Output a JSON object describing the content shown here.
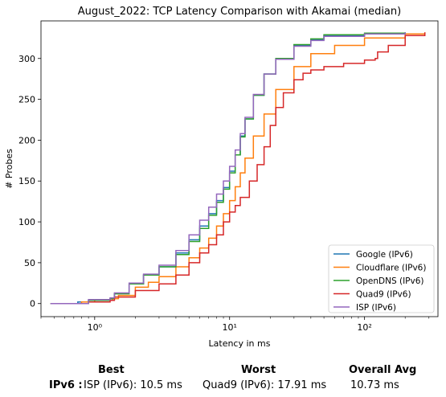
{
  "chart_data": {
    "type": "line",
    "title": "August_2022: TCP Latency Comparison with Akamai (median)",
    "xlabel": "Latency in ms",
    "ylabel": "# Probes",
    "xscale": "log",
    "xlim": [
      0.4,
      350
    ],
    "ylim": [
      -16,
      346
    ],
    "xticks": [
      1,
      10,
      100
    ],
    "xtick_labels": [
      "10⁰",
      "10¹",
      "10²"
    ],
    "yticks": [
      0,
      50,
      100,
      150,
      200,
      250,
      300
    ],
    "grid": false,
    "legend_position": "lower right",
    "series": [
      {
        "name": "Google (IPv6)",
        "color": "#1f77b4",
        "x": [
          0.47,
          0.75,
          0.9,
          1.3,
          1.4,
          1.8,
          2.3,
          3.0,
          4.0,
          5.0,
          6.0,
          7.0,
          8.0,
          9.0,
          10.0,
          11.0,
          12.0,
          13.0,
          15.0,
          18.0,
          22.0,
          30.0,
          40.0,
          50.0,
          100.0,
          200.0
        ],
        "y": [
          0,
          2,
          4,
          6,
          12,
          24,
          35,
          45,
          62,
          78,
          95,
          110,
          126,
          142,
          162,
          182,
          205,
          226,
          255,
          281,
          299,
          316,
          323,
          328,
          330,
          332
        ]
      },
      {
        "name": "Cloudflare (IPv6)",
        "color": "#ff7f0e",
        "x": [
          0.47,
          0.8,
          1.0,
          1.35,
          1.5,
          2.0,
          2.5,
          3.0,
          4.0,
          5.0,
          6.0,
          7.0,
          8.0,
          9.0,
          10.0,
          11.0,
          12.0,
          13.0,
          15.0,
          18.0,
          22.0,
          30.0,
          40.0,
          60.0,
          100.0,
          200.0,
          280.0
        ],
        "y": [
          0,
          2,
          4,
          6,
          10,
          20,
          26,
          33,
          45,
          56,
          68,
          80,
          95,
          110,
          126,
          143,
          160,
          178,
          205,
          232,
          262,
          290,
          306,
          316,
          325,
          330,
          332
        ]
      },
      {
        "name": "OpenDNS (IPv6)",
        "color": "#2ca02c",
        "x": [
          0.47,
          0.9,
          1.3,
          1.4,
          1.8,
          2.3,
          3.0,
          4.0,
          5.0,
          6.0,
          7.0,
          8.0,
          9.0,
          10.0,
          11.0,
          12.0,
          13.0,
          15.0,
          18.0,
          22.0,
          30.0,
          40.0,
          50.0,
          100.0,
          200.0
        ],
        "y": [
          0,
          4,
          6,
          12,
          24,
          35,
          45,
          60,
          76,
          92,
          108,
          124,
          140,
          160,
          182,
          204,
          226,
          255,
          281,
          300,
          317,
          324,
          329,
          331,
          332
        ]
      },
      {
        "name": "Quad9 (IPv6)",
        "color": "#d62728",
        "x": [
          0.9,
          1.3,
          1.4,
          2.0,
          3.0,
          4.0,
          5.0,
          6.0,
          7.0,
          8.0,
          9.0,
          10.0,
          11.0,
          12.0,
          14.0,
          16.0,
          18.0,
          20.0,
          22.0,
          25.0,
          30.0,
          35.0,
          40.0,
          50.0,
          70.0,
          100.0,
          120.0,
          125.0,
          150.0,
          200.0,
          280.0
        ],
        "y": [
          2,
          4,
          8,
          16,
          24,
          35,
          50,
          62,
          72,
          84,
          100,
          112,
          120,
          130,
          150,
          170,
          192,
          218,
          240,
          258,
          274,
          282,
          286,
          290,
          294,
          298,
          300,
          308,
          316,
          328,
          332
        ]
      },
      {
        "name": "ISP (IPv6)",
        "color": "#9467bd",
        "x": [
          0.47,
          0.9,
          1.3,
          1.4,
          1.8,
          2.3,
          3.0,
          4.0,
          5.0,
          6.0,
          7.0,
          8.0,
          9.0,
          10.0,
          11.0,
          12.0,
          13.0,
          15.0,
          18.0,
          22.0,
          30.0,
          40.0,
          50.0,
          100.0,
          200.0
        ],
        "y": [
          0,
          5,
          7,
          13,
          25,
          36,
          47,
          65,
          84,
          102,
          118,
          134,
          150,
          168,
          188,
          208,
          228,
          256,
          281,
          299,
          315,
          322,
          327,
          330,
          332
        ]
      }
    ]
  },
  "summary": {
    "best_header": "Best",
    "worst_header": "Worst",
    "avg_header": "Overall Avg",
    "row_label": "IPv6 :",
    "best_value": "ISP (IPv6): 10.5 ms",
    "worst_value": "Quad9 (IPv6): 17.91 ms",
    "avg_value": "10.73 ms"
  }
}
